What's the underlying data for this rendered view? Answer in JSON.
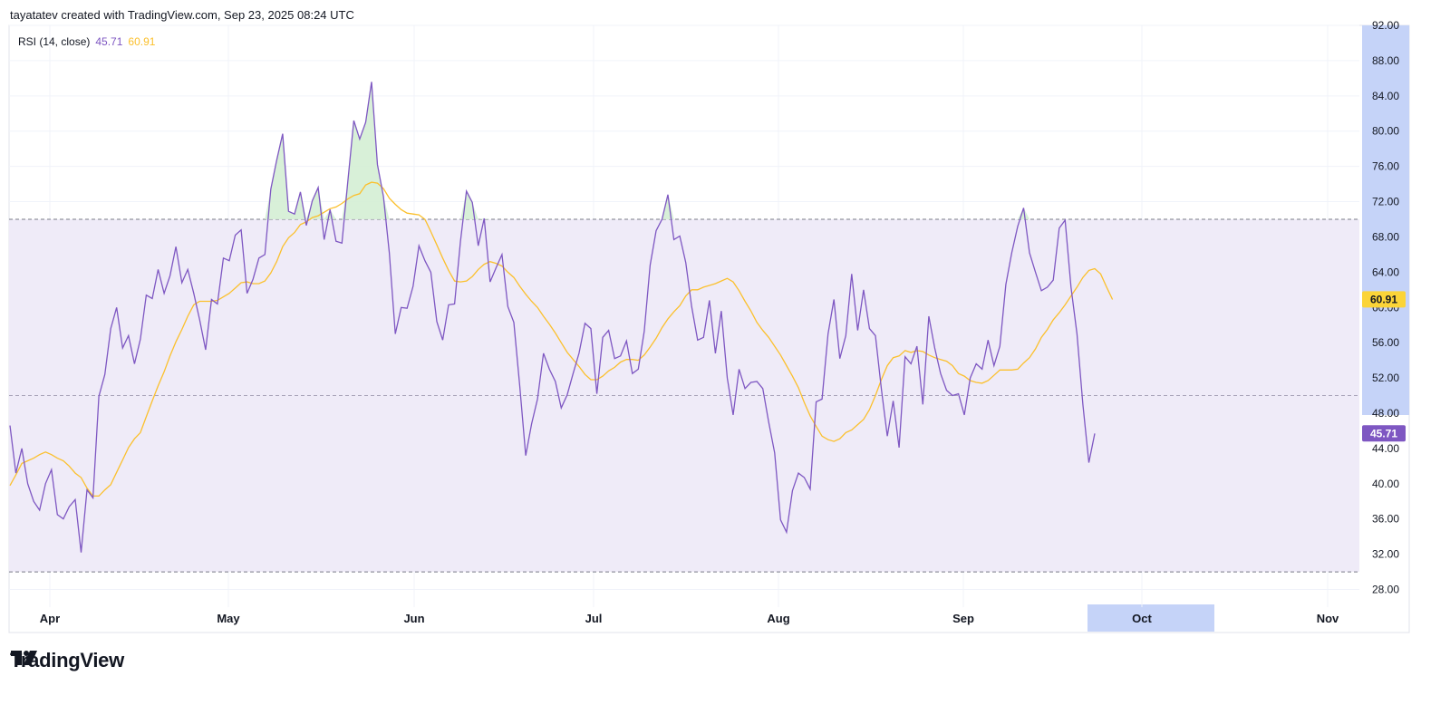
{
  "header": {
    "attribution": "tayatatev created with TradingView.com, Sep 23, 2025 08:24 UTC"
  },
  "legend": {
    "label": "RSI (14, close)",
    "rsi_value": "45.71",
    "ma_value": "60.91"
  },
  "footer": {
    "brand": "TradingView"
  },
  "colors": {
    "rsi_line": "#7e57c2",
    "ma_line": "#fbc02d",
    "band_fill": "#efebf8",
    "overbought_fill": "#d4eed4",
    "axis_highlight": "#c5d3f8",
    "rsi_badge": "#7e57c2",
    "ma_badge": "#fbd438"
  },
  "chart_data": {
    "type": "line",
    "title": "RSI (14, close)",
    "ylim": [
      26,
      92
    ],
    "y_ticks": [
      "92.00",
      "88.00",
      "84.00",
      "80.00",
      "76.00",
      "72.00",
      "68.00",
      "64.00",
      "60.00",
      "56.00",
      "52.00",
      "48.00",
      "44.00",
      "40.00",
      "36.00",
      "32.00",
      "28.00"
    ],
    "x_ticks": [
      "Apr",
      "May",
      "Jun",
      "Jul",
      "Aug",
      "Sep",
      "Oct",
      "Nov"
    ],
    "highlighted_x_tick": "Oct",
    "bands": {
      "upper": 70,
      "middle": 50,
      "lower": 30
    },
    "grid": true,
    "last_values": {
      "rsi": "45.71",
      "ma": "60.91"
    },
    "series": [
      {
        "name": "RSI",
        "values": [
          46.6,
          41.2,
          44.0,
          40.0,
          38.0,
          37.0,
          40.0,
          41.6,
          36.5,
          36.0,
          37.4,
          38.2,
          32.2,
          39.3,
          38.4,
          49.9,
          52.4,
          57.6,
          60.0,
          55.4,
          56.8,
          53.6,
          56.4,
          61.4,
          61.0,
          64.3,
          61.6,
          63.6,
          66.9,
          62.8,
          64.3,
          61.6,
          58.6,
          55.2,
          60.9,
          60.4,
          65.6,
          65.3,
          68.2,
          68.8,
          61.6,
          63.2,
          65.6,
          66.0,
          73.4,
          76.7,
          79.7,
          70.9,
          70.6,
          73.1,
          69.3,
          72.1,
          73.6,
          67.7,
          71.1,
          67.5,
          67.3,
          74.3,
          81.2,
          79.1,
          81.0,
          85.6,
          76.2,
          72.6,
          66.2,
          57.0,
          60.0,
          59.9,
          62.4,
          67.0,
          65.3,
          64.0,
          58.4,
          56.3,
          60.3,
          60.4,
          67.5,
          73.2,
          71.9,
          67.0,
          70.1,
          62.9,
          64.5,
          66.0,
          60.1,
          58.3,
          51.1,
          43.2,
          46.8,
          49.6,
          54.8,
          53.0,
          51.6,
          48.6,
          50.1,
          52.5,
          54.8,
          58.2,
          57.6,
          50.2,
          56.6,
          57.4,
          54.2,
          54.5,
          56.2,
          52.5,
          53.0,
          57.3,
          64.8,
          68.7,
          70.0,
          72.8,
          67.7,
          68.1,
          65.1,
          60.1,
          56.3,
          56.6,
          60.8,
          54.8,
          59.6,
          52.0,
          47.8,
          53.0,
          50.8,
          51.5,
          51.6,
          50.8,
          47.0,
          43.5,
          35.9,
          34.5,
          39.2,
          41.2,
          40.7,
          39.4,
          49.3,
          49.6,
          57.0,
          60.9,
          54.2,
          56.8,
          63.8,
          57.4,
          62.0,
          57.6,
          56.8,
          50.8,
          45.4,
          49.4,
          44.1,
          54.4,
          53.6,
          55.6,
          49.0,
          59.0,
          55.4,
          52.5,
          50.6,
          50.0,
          50.2,
          47.8,
          52.0,
          53.6,
          53.0,
          56.3,
          53.4,
          55.6,
          62.6,
          66.2,
          69.2,
          71.3,
          66.2,
          64.0,
          61.9,
          62.3,
          63.1,
          69.0,
          69.9,
          62.3,
          57.0,
          49.0,
          42.4,
          45.7
        ]
      },
      {
        "name": "RSI-based MA",
        "values": [
          39.8,
          41.0,
          42.3,
          42.6,
          42.9,
          43.3,
          43.6,
          43.3,
          42.9,
          42.6,
          42.0,
          41.2,
          40.7,
          39.5,
          38.6,
          38.6,
          39.3,
          39.9,
          41.3,
          42.7,
          44.1,
          45.1,
          45.8,
          47.6,
          49.4,
          51.1,
          52.7,
          54.5,
          56.1,
          57.5,
          59.0,
          60.3,
          60.7,
          60.7,
          60.7,
          60.8,
          61.2,
          61.6,
          62.2,
          62.8,
          62.9,
          62.7,
          62.7,
          63.0,
          63.9,
          65.2,
          66.9,
          67.9,
          68.5,
          69.4,
          69.7,
          70.2,
          70.4,
          70.8,
          71.2,
          71.4,
          71.8,
          72.3,
          72.7,
          72.9,
          73.9,
          74.2,
          74.1,
          73.5,
          72.4,
          71.7,
          71.1,
          70.7,
          70.6,
          70.5,
          70.0,
          68.6,
          67.1,
          65.6,
          64.2,
          63.0,
          62.9,
          63.0,
          63.5,
          64.3,
          64.9,
          65.2,
          65.0,
          64.7,
          64.0,
          63.4,
          62.4,
          61.5,
          60.7,
          60.0,
          59.0,
          58.1,
          57.1,
          56.0,
          54.9,
          54.1,
          53.3,
          52.4,
          51.8,
          51.8,
          52.2,
          52.8,
          53.2,
          53.8,
          54.1,
          54.1,
          54.0,
          54.6,
          55.5,
          56.5,
          57.7,
          58.7,
          59.5,
          60.2,
          61.3,
          62.0,
          62.0,
          62.3,
          62.5,
          62.7,
          63.0,
          63.3,
          62.9,
          61.9,
          60.7,
          59.6,
          58.3,
          57.4,
          56.6,
          55.6,
          54.6,
          53.4,
          52.2,
          50.9,
          49.2,
          47.7,
          46.5,
          45.4,
          45.0,
          44.8,
          45.1,
          45.8,
          46.1,
          46.7,
          47.3,
          48.4,
          50.0,
          51.8,
          53.4,
          54.3,
          54.5,
          55.1,
          54.9,
          55.1,
          55.0,
          54.6,
          54.3,
          54.1,
          53.9,
          53.4,
          52.5,
          52.2,
          51.7,
          51.5,
          51.4,
          51.7,
          52.3,
          52.9,
          52.9,
          52.9,
          53.0,
          53.7,
          54.3,
          55.3,
          56.6,
          57.5,
          58.6,
          59.4,
          60.3,
          61.3,
          62.3,
          63.4,
          64.2,
          64.4,
          63.8,
          62.3,
          60.9
        ]
      }
    ]
  }
}
